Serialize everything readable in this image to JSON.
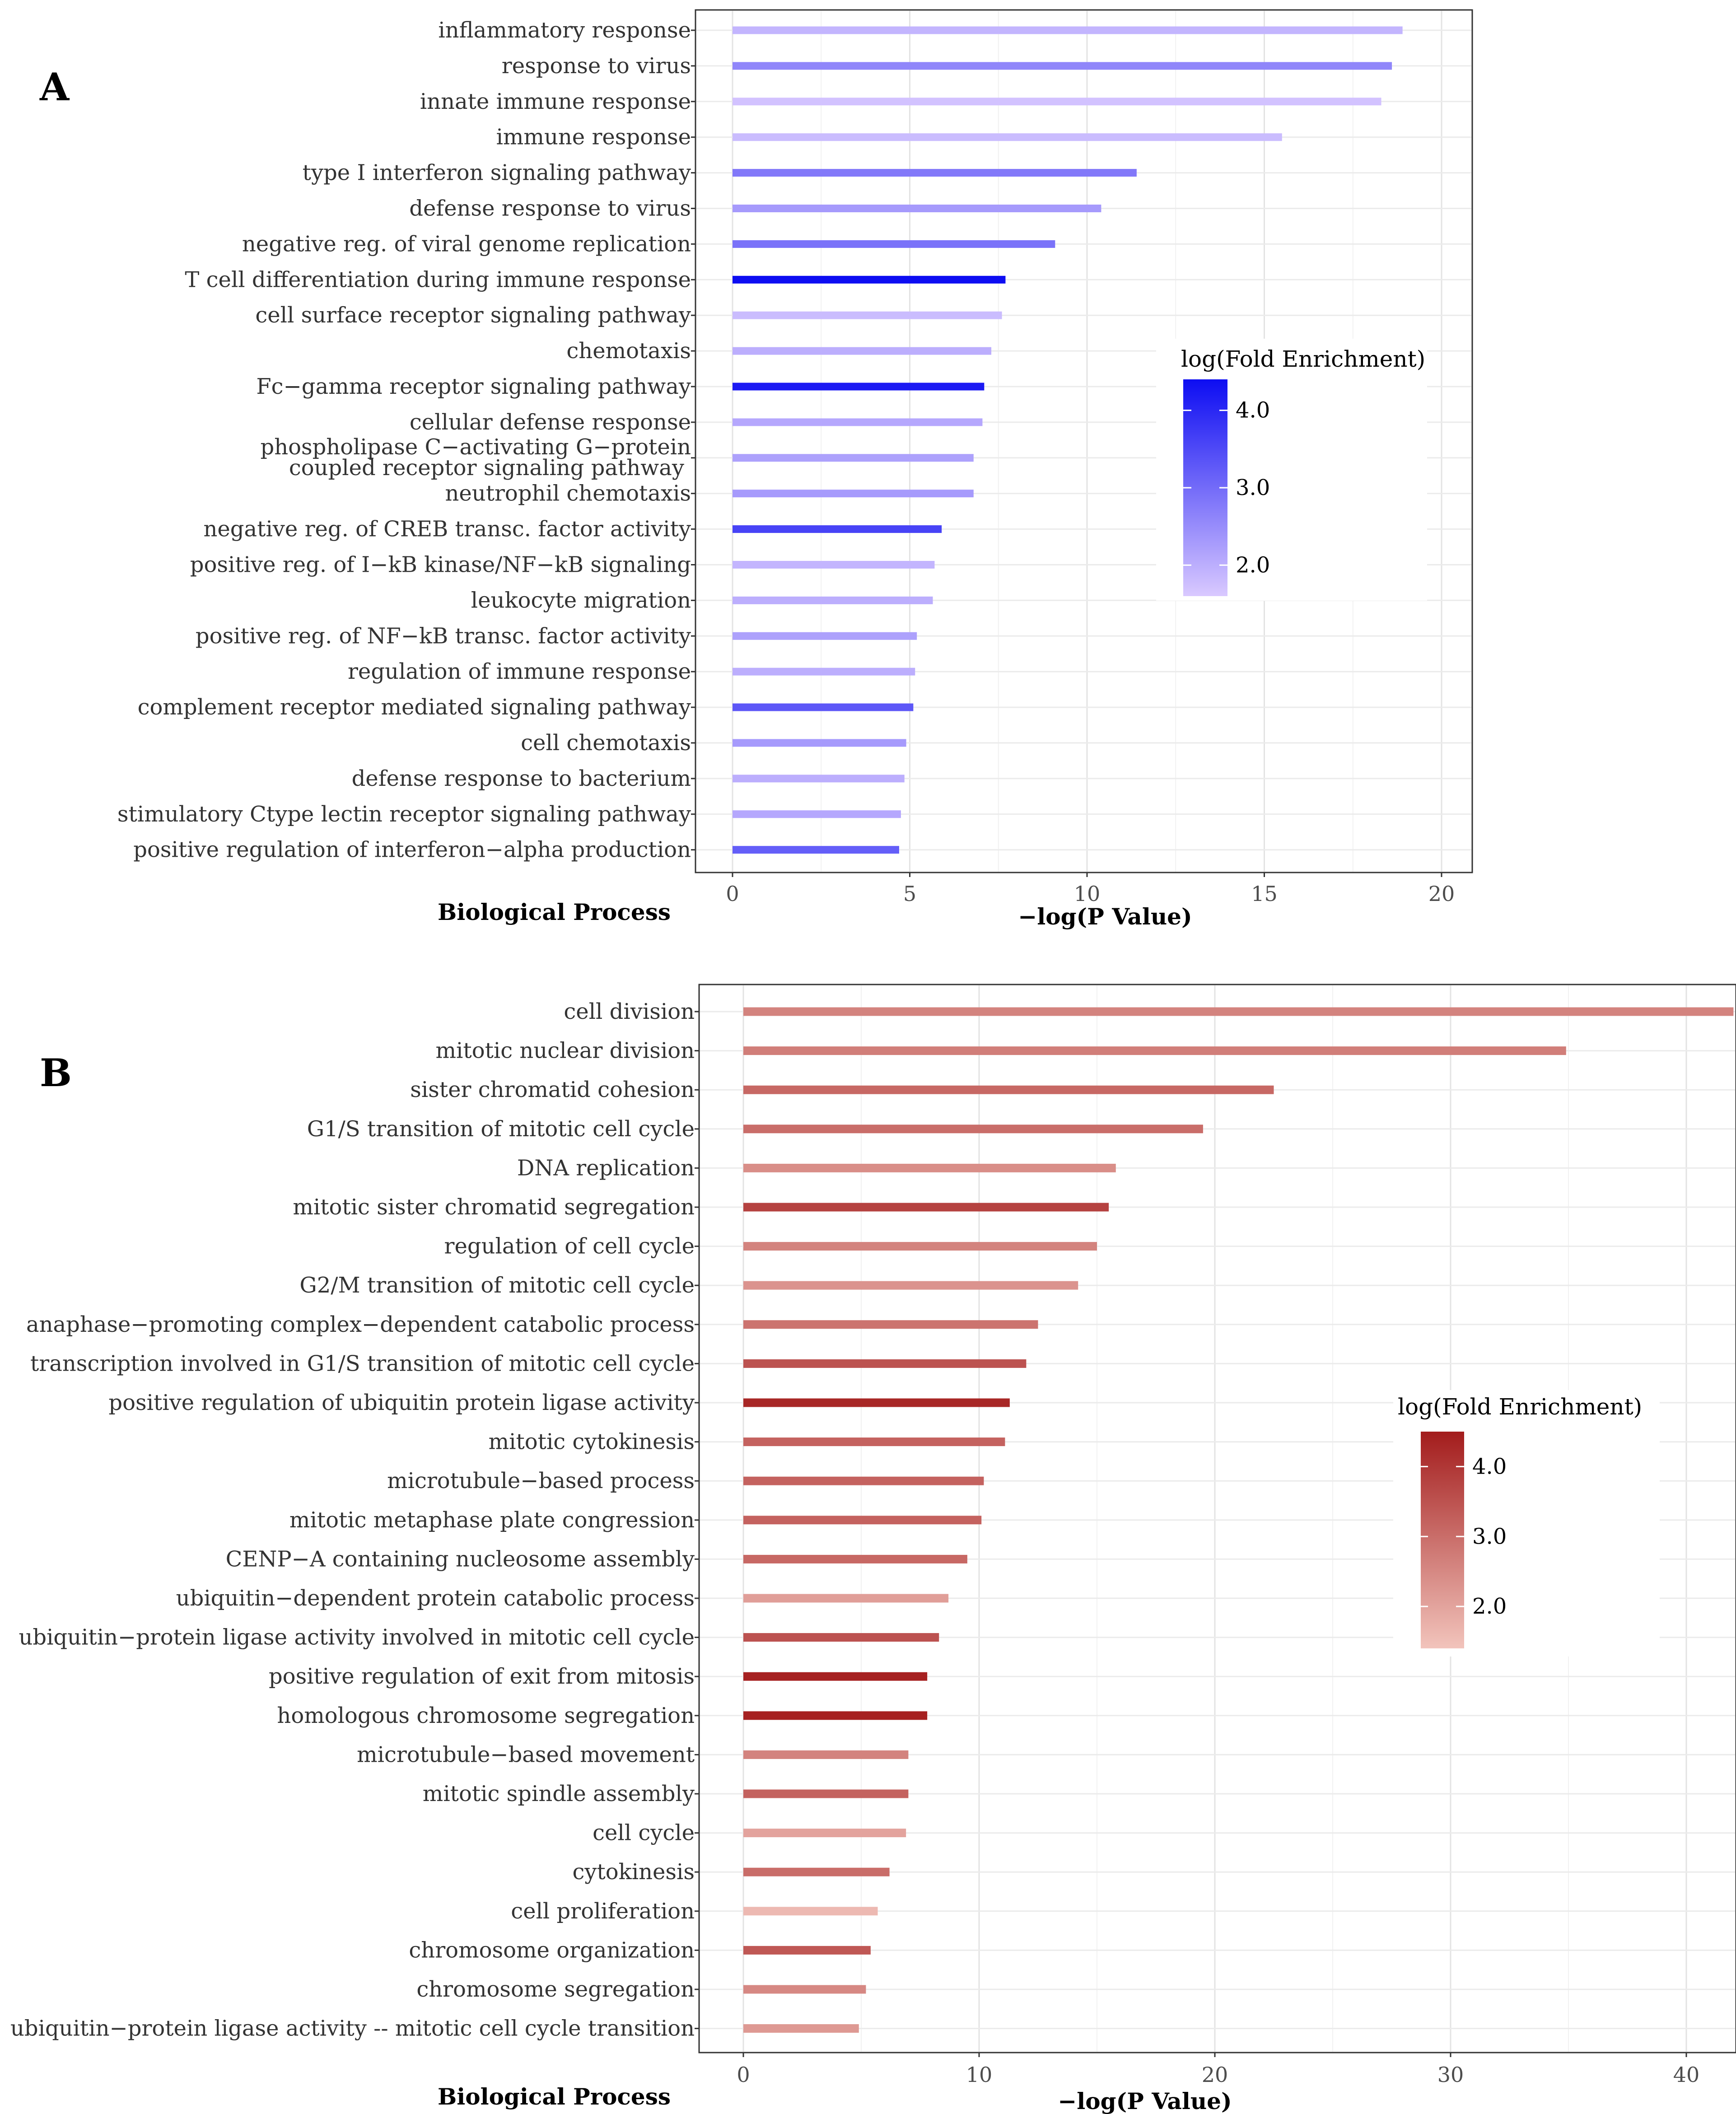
{
  "chart_data": [
    {
      "type": "bar",
      "orientation": "horizontal",
      "panel_label": "A",
      "xlabel": "−log(P Value)",
      "ylabel": "Biological Process",
      "xlim": [
        -1,
        20.8
      ],
      "xticks": [
        0,
        5,
        10,
        15,
        20
      ],
      "grid": true,
      "legend": {
        "title": "log(Fold Enrichment)",
        "ticks": [
          "4.0",
          "3.0",
          "2.0"
        ],
        "tick_values": [
          4.0,
          3.0,
          2.0
        ],
        "range": [
          1.6,
          4.4
        ],
        "color_low": "#d9c9ff",
        "color_high": "#0d0df2",
        "placement": "right"
      },
      "categories": [
        "inflammatory response",
        "response to virus",
        "innate immune response",
        "immune response",
        "type I interferon signaling pathway",
        "defense response to virus",
        "negative reg. of viral genome replication",
        "T cell differentiation during immune response",
        "cell surface receptor signaling pathway",
        "chemotaxis",
        "Fc−gamma receptor signaling pathway",
        "cellular defense response",
        [
          "phospholipase C−activating G−protein",
          "coupled receptor signaling pathway"
        ],
        "neutrophil chemotaxis",
        "negative reg. of CREB transc. factor activity",
        "positive reg. of I−kB kinase/NF−kB signaling",
        "leukocyte migration",
        "positive reg. of NF−kB transc. factor activity",
        "regulation of immune response",
        "complement receptor mediated signaling pathway",
        "cell chemotaxis",
        "defense response to bacterium",
        "stimulatory Ctype lectin receptor signaling pathway",
        "positive regulation of interferon−alpha production"
      ],
      "values": [
        18.9,
        18.6,
        18.3,
        15.5,
        11.4,
        10.4,
        9.1,
        7.7,
        7.6,
        7.3,
        7.1,
        7.05,
        6.8,
        6.8,
        5.9,
        5.7,
        5.65,
        5.2,
        5.15,
        5.1,
        4.9,
        4.85,
        4.75,
        4.7
      ],
      "color_values": [
        1.9,
        2.6,
        1.7,
        1.8,
        2.8,
        2.3,
        2.9,
        4.4,
        1.8,
        2.0,
        4.2,
        2.1,
        2.2,
        2.3,
        3.6,
        1.9,
        2.0,
        2.2,
        2.0,
        3.3,
        2.3,
        2.0,
        2.1,
        3.2
      ]
    },
    {
      "type": "bar",
      "orientation": "horizontal",
      "panel_label": "B",
      "xlabel": "−log(P Value)",
      "ylabel": "Biological Process",
      "xlim": [
        -2,
        42
      ],
      "xticks": [
        0,
        10,
        20,
        30,
        40
      ],
      "grid": true,
      "legend": {
        "title": "log(Fold Enrichment)",
        "ticks": [
          "4.0",
          "3.0",
          "2.0"
        ],
        "tick_values": [
          4.0,
          3.0,
          2.0
        ],
        "range": [
          1.4,
          4.5
        ],
        "color_low": "#f2c4bc",
        "color_high": "#a31c1c",
        "placement": "right"
      },
      "categories": [
        "cell division",
        "mitotic nuclear division",
        "sister chromatid cohesion",
        "G1/S transition of mitotic cell cycle",
        "DNA replication",
        "mitotic sister chromatid segregation",
        "regulation of cell cycle",
        "G2/M transition of mitotic cell cycle",
        "anaphase−promoting complex−dependent catabolic process",
        "transcription involved in G1/S transition of mitotic cell cycle",
        "positive regulation of ubiquitin protein ligase activity",
        "mitotic cytokinesis",
        "microtubule−based process",
        "mitotic metaphase plate congression",
        "CENP−A containing nucleosome assembly",
        "ubiquitin−dependent protein catabolic process",
        "ubiquitin−protein ligase activity involved in mitotic cell cycle",
        "positive regulation of exit from mitosis",
        "homologous chromosome segregation",
        "microtubule−based movement",
        "mitotic spindle assembly",
        "cell cycle",
        "cytokinesis",
        "cell proliferation",
        "chromosome organization",
        "chromosome segregation",
        "ubiquitin−protein ligase activity -- mitotic cell cycle transition"
      ],
      "values": [
        42,
        34.9,
        22.5,
        19.5,
        15.8,
        15.5,
        15,
        14.2,
        12.5,
        12,
        11.3,
        11.1,
        10.2,
        10.1,
        9.5,
        8.7,
        8.3,
        7.8,
        7.8,
        7,
        7,
        6.9,
        6.2,
        5.7,
        5.4,
        5.2,
        4.9
      ],
      "color_values": [
        2.6,
        2.7,
        3.1,
        3.0,
        2.4,
        3.8,
        2.6,
        2.3,
        2.9,
        3.5,
        4.3,
        3.2,
        3.2,
        3.2,
        3.1,
        2.1,
        3.5,
        4.4,
        4.4,
        2.6,
        3.2,
        2.0,
        3.0,
        1.6,
        3.4,
        2.5,
        2.2
      ]
    }
  ]
}
